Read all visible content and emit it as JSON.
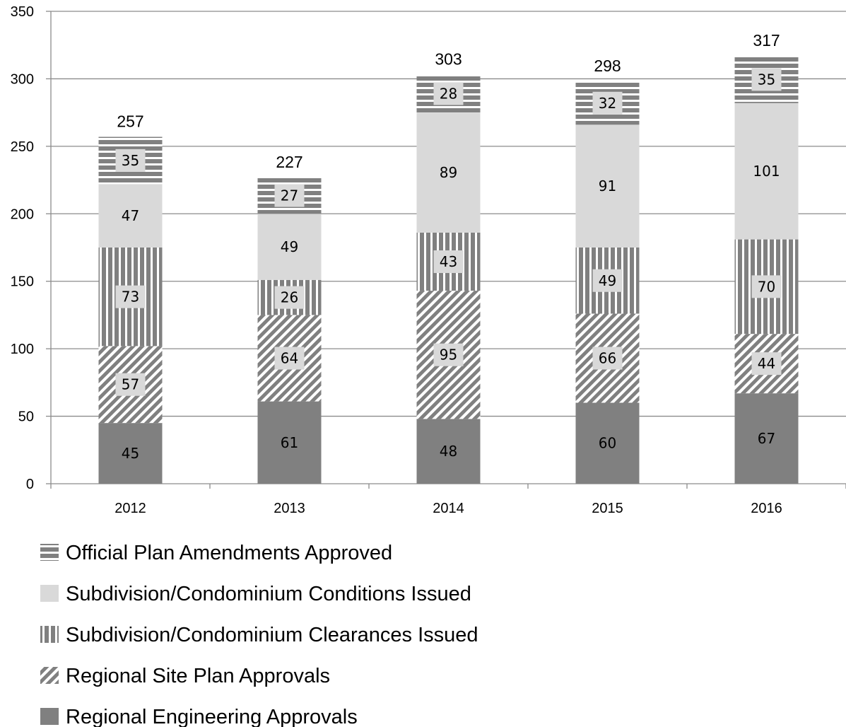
{
  "chart_data": {
    "type": "bar",
    "stacked": true,
    "categories": [
      "2012",
      "2013",
      "2014",
      "2015",
      "2016"
    ],
    "series": [
      {
        "name": "Regional Engineering Approvals",
        "values": [
          45,
          61,
          48,
          60,
          67
        ],
        "pattern": "solid",
        "color": "#808080"
      },
      {
        "name": "Regional Site Plan Approvals",
        "values": [
          57,
          64,
          95,
          66,
          44
        ],
        "pattern": "diagonal",
        "color": "#808080"
      },
      {
        "name": "Subdivision/Condominium Clearances Issued",
        "values": [
          73,
          26,
          43,
          49,
          70
        ],
        "pattern": "vertical",
        "color": "#808080"
      },
      {
        "name": "Subdivision/Condominium Conditions Issued",
        "values": [
          47,
          49,
          89,
          91,
          101
        ],
        "pattern": "light",
        "color": "#d9d9d9"
      },
      {
        "name": "Official Plan Amendments Approved",
        "values": [
          35,
          27,
          28,
          32,
          35
        ],
        "pattern": "horizontal",
        "color": "#808080"
      }
    ],
    "totals": [
      257,
      227,
      303,
      298,
      317
    ],
    "ylim": [
      0,
      350
    ],
    "yticks": [
      0,
      50,
      100,
      150,
      200,
      250,
      300,
      350
    ],
    "grid": true,
    "legend": "bottom",
    "legend_order": [
      "Official Plan Amendments Approved",
      "Subdivision/Condominium Conditions Issued",
      "Subdivision/Condominium Clearances Issued",
      "Regional Site Plan Approvals",
      "Regional Engineering Approvals"
    ]
  }
}
